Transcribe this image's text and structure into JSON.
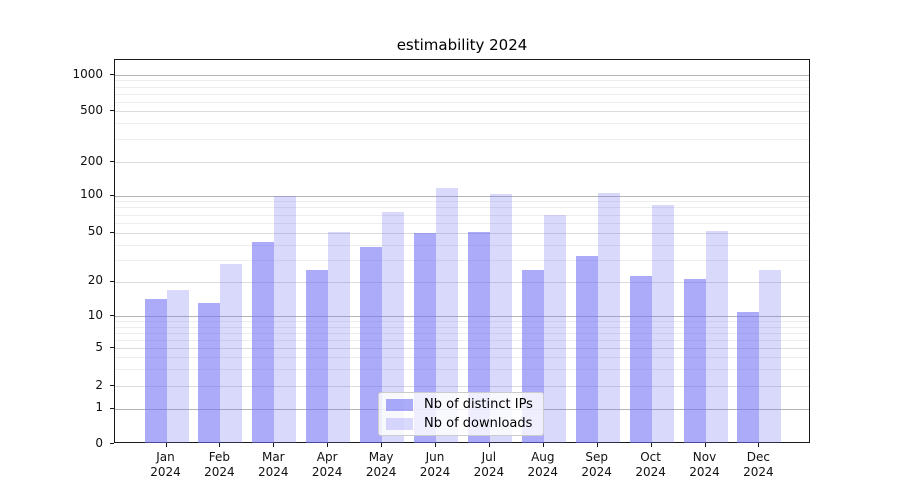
{
  "title": "estimability 2024",
  "legend": {
    "items": [
      {
        "label": "Nb of distinct IPs",
        "color": "#6e6ef5",
        "alpha": 0.58,
        "rendered_color": "#a9a9f9"
      },
      {
        "label": "Nb of downloads",
        "color": "#6e6ef5",
        "alpha": 0.26,
        "rendered_color": "#dadafc"
      }
    ]
  },
  "axis": {
    "y_ticks": [
      {
        "value": 0,
        "label": "0"
      },
      {
        "value": 1,
        "label": "1"
      },
      {
        "value": 2,
        "label": "2"
      },
      {
        "value": 5,
        "label": "5"
      },
      {
        "value": 10,
        "label": "10"
      },
      {
        "value": 20,
        "label": "20"
      },
      {
        "value": 50,
        "label": "50"
      },
      {
        "value": 100,
        "label": "100"
      },
      {
        "value": 200,
        "label": "200"
      },
      {
        "value": 500,
        "label": "500"
      },
      {
        "value": 1000,
        "label": "1000"
      }
    ],
    "x_ticks": [
      {
        "label": "Jan\n2024"
      },
      {
        "label": "Feb\n2024"
      },
      {
        "label": "Mar\n2024"
      },
      {
        "label": "Apr\n2024"
      },
      {
        "label": "May\n2024"
      },
      {
        "label": "Jun\n2024"
      },
      {
        "label": "Jul\n2024"
      },
      {
        "label": "Aug\n2024"
      },
      {
        "label": "Sep\n2024"
      },
      {
        "label": "Oct\n2024"
      },
      {
        "label": "Nov\n2024"
      },
      {
        "label": "Dec\n2024"
      }
    ]
  },
  "chart_data": {
    "type": "bar",
    "title": "estimability 2024",
    "categories": [
      "Jan 2024",
      "Feb 2024",
      "Mar 2024",
      "Apr 2024",
      "May 2024",
      "Jun 2024",
      "Jul 2024",
      "Aug 2024",
      "Sep 2024",
      "Oct 2024",
      "Nov 2024",
      "Dec 2024"
    ],
    "series": [
      {
        "name": "Nb of distinct IPs",
        "values": [
          14,
          13,
          42,
          25,
          38,
          50,
          51,
          25,
          32,
          22,
          21,
          11
        ]
      },
      {
        "name": "Nb of downloads",
        "values": [
          17,
          28,
          100,
          51,
          74,
          118,
          103,
          69,
          105,
          83,
          52,
          25
        ]
      }
    ],
    "xlabel": "",
    "ylabel": "",
    "yscale": "symlog",
    "yticks": [
      0,
      1,
      2,
      5,
      10,
      20,
      50,
      100,
      200,
      500,
      1000
    ],
    "ylim": [
      0,
      1300
    ],
    "grid": true,
    "legend_position": "lower center"
  }
}
